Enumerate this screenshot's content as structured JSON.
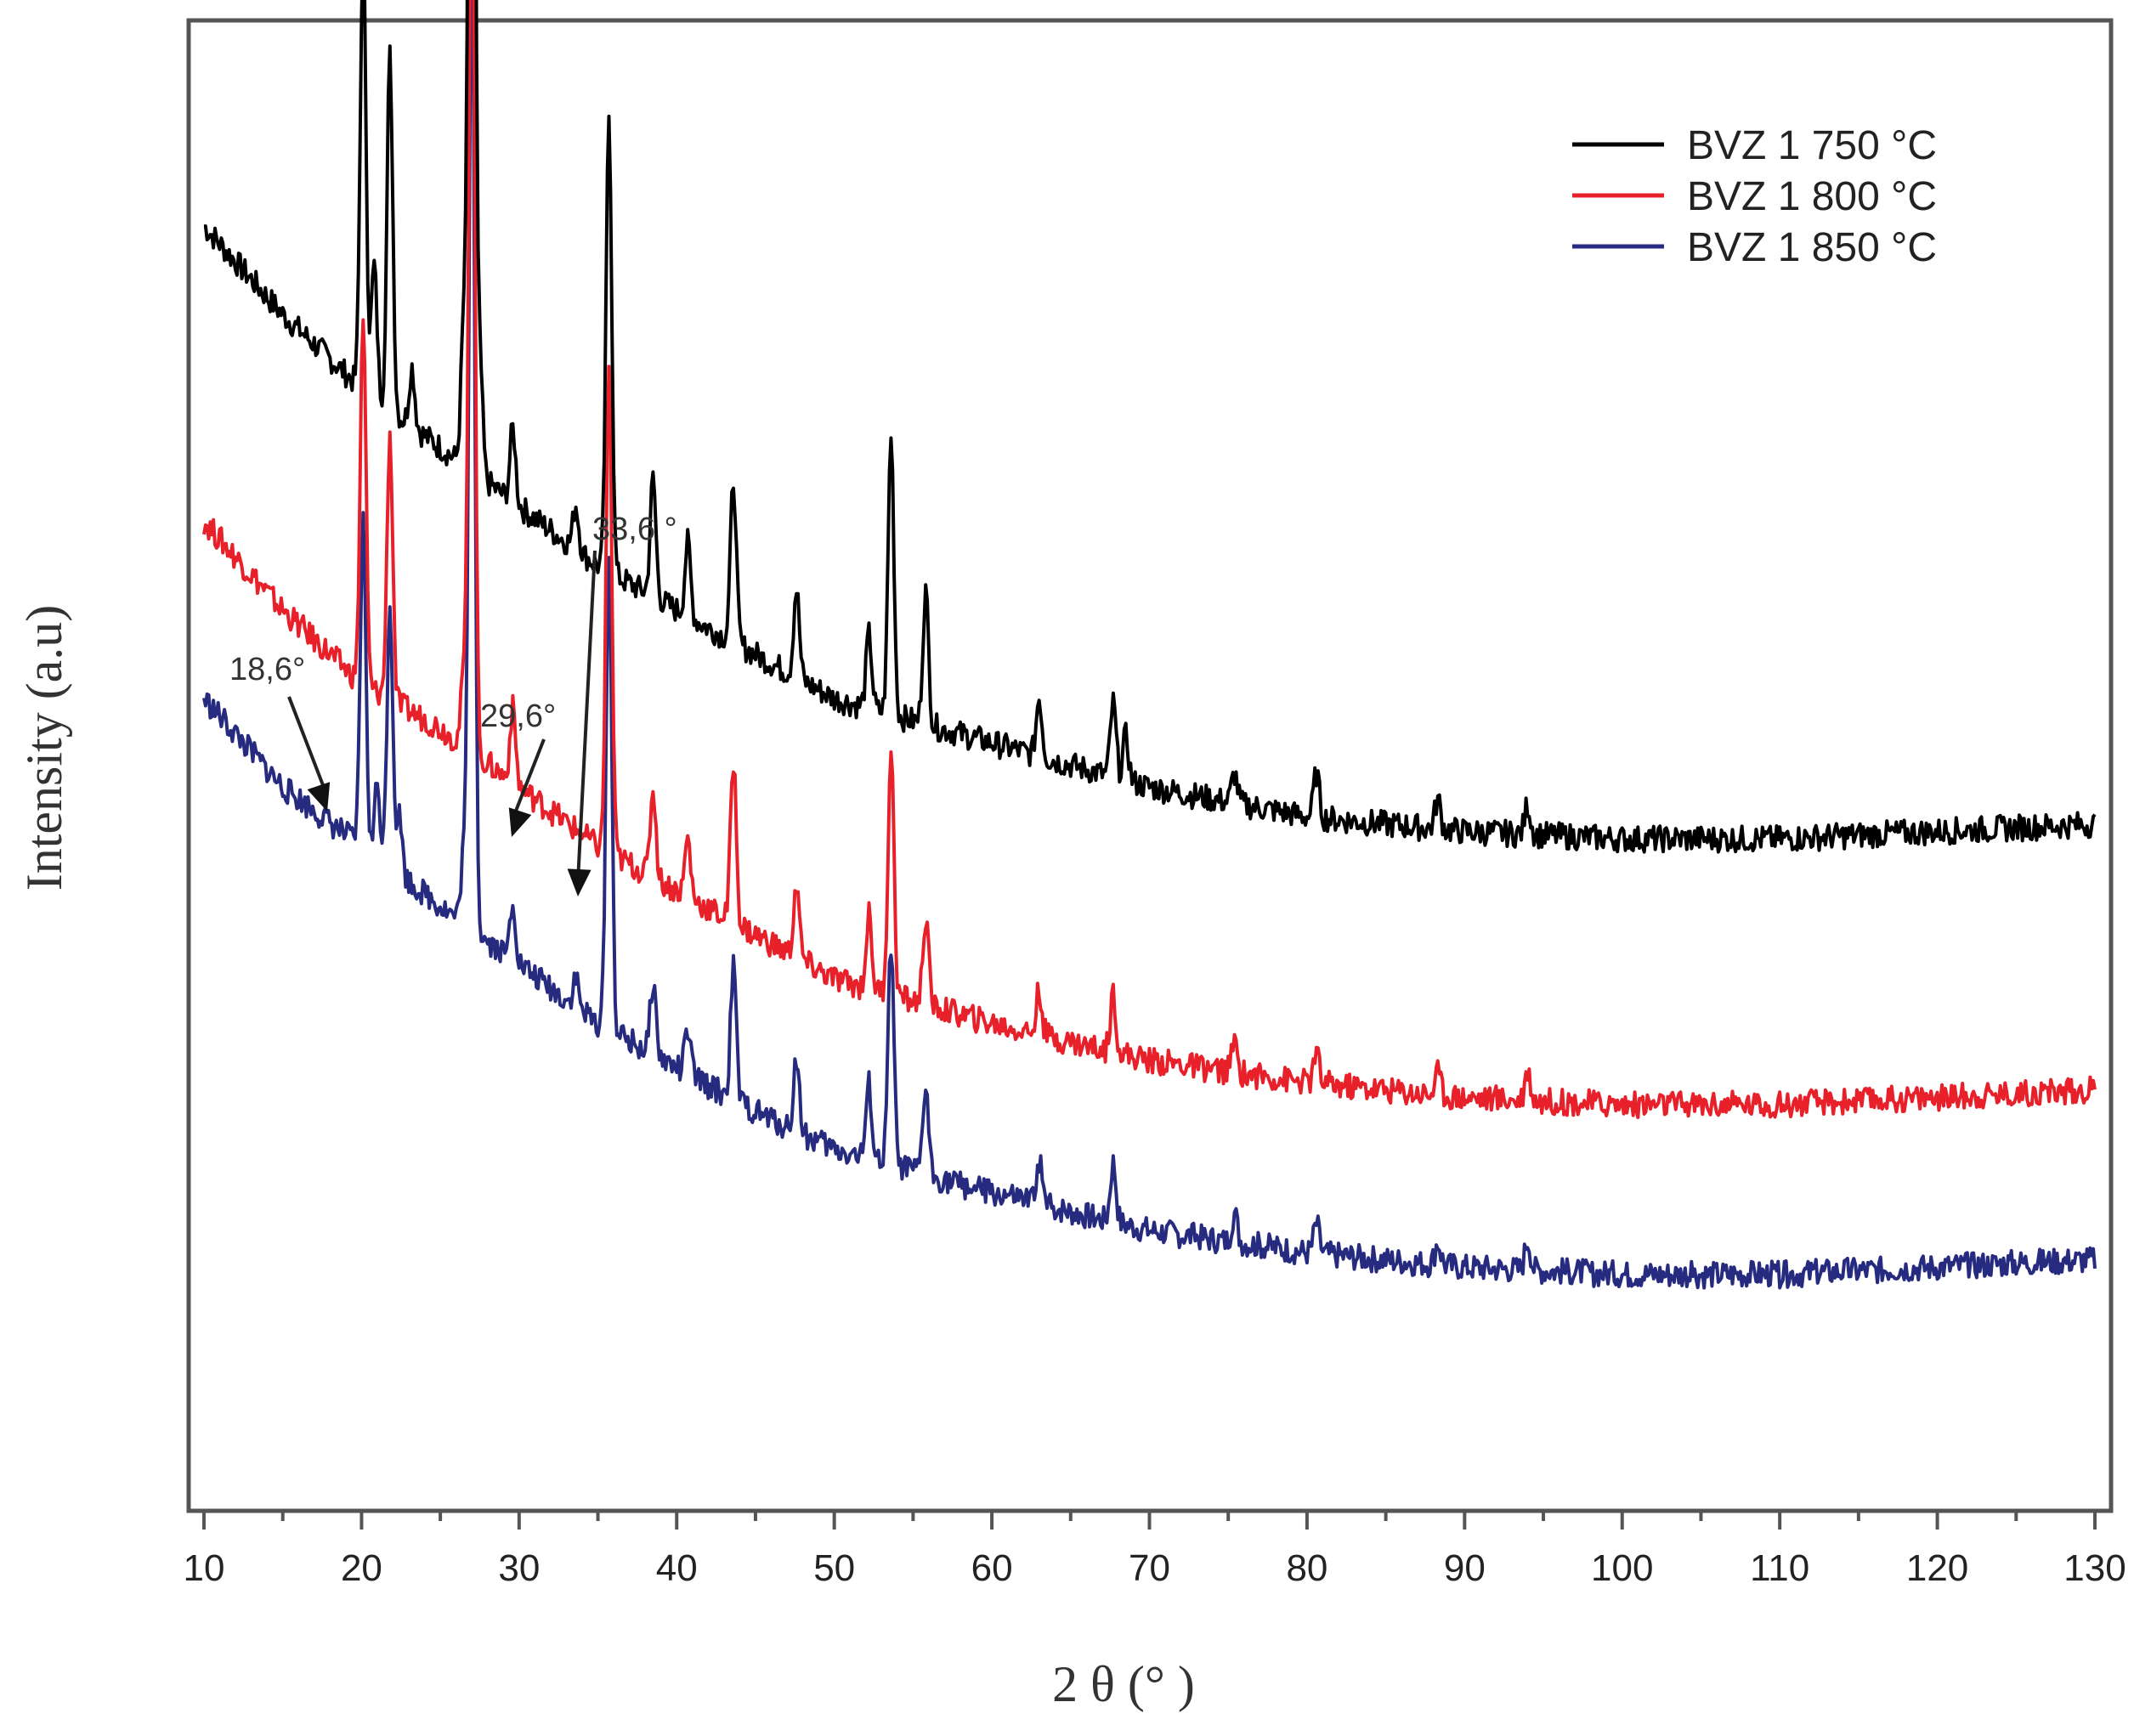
{
  "chart_data": {
    "type": "line",
    "title": "",
    "xlabel": "2 θ (° )",
    "ylabel": "Intensity (a.u)",
    "xlim": [
      10,
      130
    ],
    "x_ticks": [
      "10",
      "20",
      "30",
      "40",
      "50",
      "60",
      "70",
      "80",
      "90",
      "100",
      "110",
      "120",
      "130"
    ],
    "y_ticks_shown": false,
    "grid": false,
    "legend_position": "top-right",
    "series": [
      {
        "name": "BVZ 1 750 °C",
        "color": "#000000",
        "baseline": {
          "x": [
            10,
            15,
            20,
            25,
            30,
            35,
            40,
            45,
            50,
            60,
            70,
            80,
            90,
            100,
            110,
            120,
            130
          ],
          "y": [
            0.87,
            0.81,
            0.76,
            0.72,
            0.68,
            0.64,
            0.61,
            0.58,
            0.55,
            0.52,
            0.49,
            0.47,
            0.46,
            0.455,
            0.455,
            0.46,
            0.465
          ]
        },
        "peaks": {
          "x": [
            20.1,
            20.8,
            21.8,
            23.2,
            26.5,
            27.0,
            27.5,
            29.6,
            33.6,
            35.7,
            38.5,
            40.7,
            43.6,
            47.6,
            52.2,
            53.6,
            55.8,
            63.0,
            67.7,
            68.5,
            75.4,
            80.6,
            88.3,
            94.0
          ],
          "h": [
            0.3,
            0.09,
            0.24,
            0.04,
            0.1,
            0.95,
            0.08,
            0.05,
            0.03,
            0.31,
            0.08,
            0.05,
            0.11,
            0.06,
            0.05,
            0.19,
            0.09,
            0.04,
            0.05,
            0.03,
            0.02,
            0.03,
            0.02,
            0.02
          ]
        }
      },
      {
        "name": "BVZ 1 800 °C",
        "color": "#e8202a",
        "baseline": {
          "x": [
            10,
            15,
            20,
            25,
            30,
            35,
            40,
            45,
            50,
            60,
            70,
            80,
            90,
            100,
            110,
            120,
            130
          ],
          "y": [
            0.67,
            0.61,
            0.56,
            0.53,
            0.49,
            0.45,
            0.42,
            0.39,
            0.36,
            0.33,
            0.305,
            0.29,
            0.28,
            0.275,
            0.275,
            0.28,
            0.285
          ]
        },
        "peaks": {
          "x": [
            20.1,
            21.8,
            26.5,
            27.0,
            29.6,
            35.7,
            38.5,
            40.7,
            43.6,
            47.6,
            52.2,
            53.6,
            55.8,
            63.0,
            67.7,
            75.4,
            80.6,
            88.3,
            94.0
          ],
          "h": [
            0.25,
            0.18,
            0.05,
            0.67,
            0.05,
            0.33,
            0.06,
            0.04,
            0.11,
            0.05,
            0.05,
            0.17,
            0.06,
            0.03,
            0.04,
            0.02,
            0.02,
            0.015,
            0.02
          ]
        }
      },
      {
        "name": "BVZ 1 850 °C",
        "color": "#262b80",
        "baseline": {
          "x": [
            10,
            15,
            20,
            25,
            30,
            35,
            40,
            45,
            50,
            60,
            70,
            80,
            90,
            100,
            110,
            120,
            130
          ],
          "y": [
            0.55,
            0.49,
            0.45,
            0.41,
            0.37,
            0.33,
            0.3,
            0.27,
            0.245,
            0.215,
            0.19,
            0.175,
            0.165,
            0.16,
            0.16,
            0.165,
            0.17
          ]
        },
        "peaks": {
          "x": [
            20.1,
            21.0,
            21.8,
            22.4,
            26.5,
            27.0,
            29.6,
            33.6,
            35.7,
            38.5,
            40.7,
            43.6,
            47.6,
            52.2,
            53.6,
            55.8,
            63.0,
            67.7,
            75.4,
            80.6,
            88.3,
            94.0
          ],
          "h": [
            0.22,
            0.05,
            0.18,
            0.04,
            0.05,
            0.68,
            0.04,
            0.02,
            0.32,
            0.05,
            0.03,
            0.09,
            0.05,
            0.05,
            0.15,
            0.06,
            0.03,
            0.04,
            0.02,
            0.02,
            0.015,
            0.02
          ]
        }
      }
    ],
    "annotations": [
      {
        "text": "18,6°",
        "x": 18.6,
        "y": 0.76
      },
      {
        "text": "29,6°",
        "x": 29.6,
        "y": 0.68
      },
      {
        "text": "33,6 °",
        "x": 33.6,
        "y": 0.65
      }
    ]
  }
}
